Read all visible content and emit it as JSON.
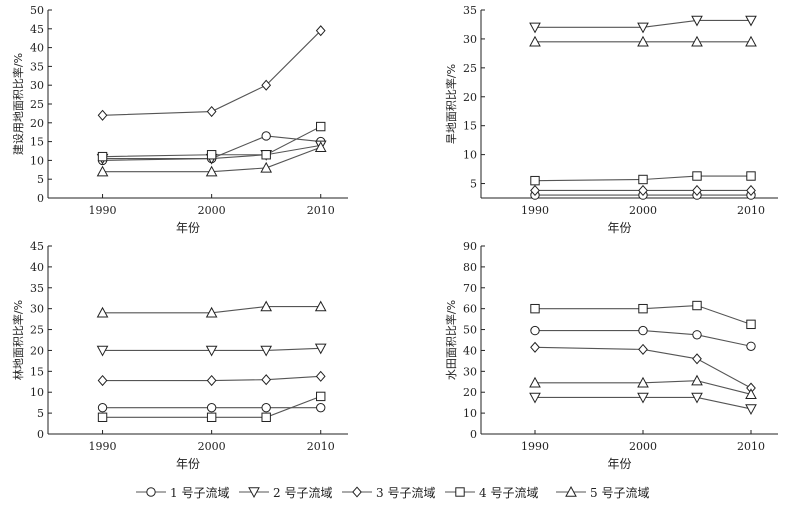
{
  "chart_data": [
    {
      "id": "a",
      "type": "line",
      "title": "",
      "xlabel": "年份",
      "ylabel": "建设用地面积比率/%",
      "x": [
        1990,
        2000,
        2005,
        2010
      ],
      "xticks": [
        "1990",
        "2000",
        "2010"
      ],
      "ylim": [
        0,
        50
      ],
      "yticks": [
        "0",
        "5",
        "10",
        "15",
        "20",
        "25",
        "30",
        "35",
        "40",
        "45",
        "50"
      ],
      "series": [
        {
          "name": "1 号子流域",
          "marker": "circle",
          "values": [
            10,
            10.5,
            16.5,
            15
          ]
        },
        {
          "name": "2 号子流域",
          "marker": "tri-down",
          "values": [
            10.5,
            10.5,
            11.5,
            14
          ]
        },
        {
          "name": "3 号子流域",
          "marker": "diamond",
          "values": [
            22,
            23,
            30,
            44.5
          ]
        },
        {
          "name": "4 号子流域",
          "marker": "square",
          "values": [
            11,
            11.5,
            11.5,
            19
          ]
        },
        {
          "name": "5 号子流域",
          "marker": "tri-up",
          "values": [
            7,
            7,
            8,
            13.5
          ]
        }
      ]
    },
    {
      "id": "b",
      "type": "line",
      "title": "",
      "xlabel": "年份",
      "ylabel": "旱地面积比率/%",
      "x": [
        1990,
        2000,
        2005,
        2010
      ],
      "xticks": [
        "1990",
        "2000",
        "2010"
      ],
      "ylim": [
        2.5,
        35
      ],
      "yticks": [
        "5",
        "10",
        "15",
        "20",
        "25",
        "30",
        "35"
      ],
      "series": [
        {
          "name": "1 号子流域",
          "marker": "circle",
          "values": [
            3,
            3,
            3,
            3
          ]
        },
        {
          "name": "2 号子流域",
          "marker": "tri-down",
          "values": [
            32,
            32,
            33.2,
            33.2
          ]
        },
        {
          "name": "3 号子流域",
          "marker": "diamond",
          "values": [
            3.8,
            3.8,
            3.8,
            3.8
          ]
        },
        {
          "name": "4 号子流域",
          "marker": "square",
          "values": [
            5.5,
            5.7,
            6.3,
            6.3
          ]
        },
        {
          "name": "5 号子流域",
          "marker": "tri-up",
          "values": [
            29.5,
            29.5,
            29.5,
            29.5
          ]
        }
      ]
    },
    {
      "id": "c",
      "type": "line",
      "title": "",
      "xlabel": "年份",
      "ylabel": "林地面积比率/%",
      "x": [
        1990,
        2000,
        2005,
        2010
      ],
      "xticks": [
        "1990",
        "2000",
        "2010"
      ],
      "ylim": [
        0,
        45
      ],
      "yticks": [
        "0",
        "5",
        "10",
        "15",
        "20",
        "25",
        "30",
        "35",
        "40",
        "45"
      ],
      "series": [
        {
          "name": "1 号子流域",
          "marker": "circle",
          "values": [
            6.3,
            6.3,
            6.3,
            6.3
          ]
        },
        {
          "name": "2 号子流域",
          "marker": "tri-down",
          "values": [
            20,
            20,
            20,
            20.5
          ]
        },
        {
          "name": "3 号子流域",
          "marker": "diamond",
          "values": [
            12.8,
            12.8,
            13,
            13.8
          ]
        },
        {
          "name": "4 号子流域",
          "marker": "square",
          "values": [
            4,
            4,
            4,
            9
          ]
        },
        {
          "name": "5 号子流域",
          "marker": "tri-up",
          "values": [
            29,
            29,
            30.5,
            30.5
          ]
        }
      ]
    },
    {
      "id": "d",
      "type": "line",
      "title": "",
      "xlabel": "年份",
      "ylabel": "水田面积比率/%",
      "x": [
        1990,
        2000,
        2005,
        2010
      ],
      "xticks": [
        "1990",
        "2000",
        "2010"
      ],
      "ylim": [
        0,
        90
      ],
      "yticks": [
        "0",
        "10",
        "20",
        "30",
        "40",
        "50",
        "60",
        "70",
        "80",
        "90"
      ],
      "series": [
        {
          "name": "1 号子流域",
          "marker": "circle",
          "values": [
            49.5,
            49.5,
            47.5,
            42
          ]
        },
        {
          "name": "2 号子流域",
          "marker": "tri-down",
          "values": [
            17.5,
            17.5,
            17.5,
            12
          ]
        },
        {
          "name": "3 号子流域",
          "marker": "diamond",
          "values": [
            41.5,
            40.5,
            36,
            22
          ]
        },
        {
          "name": "4 号子流域",
          "marker": "square",
          "values": [
            60,
            60,
            61.5,
            52.5
          ]
        },
        {
          "name": "5 号子流域",
          "marker": "tri-up",
          "values": [
            24.5,
            24.5,
            25.5,
            19
          ]
        }
      ]
    }
  ],
  "legend": [
    {
      "label": "1 号子流域",
      "marker": "circle"
    },
    {
      "label": "2 号子流域",
      "marker": "tri-down"
    },
    {
      "label": "3 号子流域",
      "marker": "diamond"
    },
    {
      "label": "4 号子流域",
      "marker": "square"
    },
    {
      "label": "5 号子流域",
      "marker": "tri-up"
    }
  ],
  "colors": {
    "axis": "#222222",
    "line": "#555555",
    "marker_fill": "#ffffff"
  }
}
